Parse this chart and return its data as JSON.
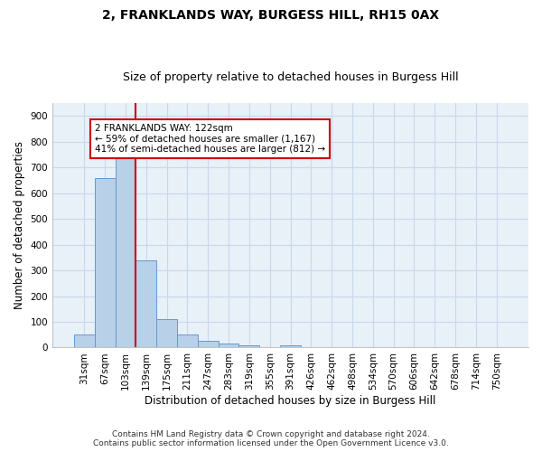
{
  "title": "2, FRANKLANDS WAY, BURGESS HILL, RH15 0AX",
  "subtitle": "Size of property relative to detached houses in Burgess Hill",
  "xlabel": "Distribution of detached houses by size in Burgess Hill",
  "ylabel": "Number of detached properties",
  "footer_line1": "Contains HM Land Registry data © Crown copyright and database right 2024.",
  "footer_line2": "Contains public sector information licensed under the Open Government Licence v3.0.",
  "bar_labels": [
    "31sqm",
    "67sqm",
    "103sqm",
    "139sqm",
    "175sqm",
    "211sqm",
    "247sqm",
    "283sqm",
    "319sqm",
    "355sqm",
    "391sqm",
    "426sqm",
    "462sqm",
    "498sqm",
    "534sqm",
    "570sqm",
    "606sqm",
    "642sqm",
    "678sqm",
    "714sqm",
    "750sqm"
  ],
  "bar_values": [
    50,
    660,
    750,
    340,
    110,
    50,
    25,
    15,
    10,
    0,
    10,
    0,
    0,
    0,
    0,
    0,
    0,
    0,
    0,
    0,
    0
  ],
  "bar_color": "#b8d0e8",
  "bar_edge_color": "#6699cc",
  "grid_color": "#c8d8ec",
  "background_color": "#e8f0f8",
  "vline_color": "#cc0000",
  "vline_pos": 2.5,
  "annotation_text_line1": "2 FRANKLANDS WAY: 122sqm",
  "annotation_text_line2": "← 59% of detached houses are smaller (1,167)",
  "annotation_text_line3": "41% of semi-detached houses are larger (812) →",
  "annotation_box_color": "#ffffff",
  "annotation_box_edge": "#cc0000",
  "ylim": [
    0,
    950
  ],
  "yticks": [
    0,
    100,
    200,
    300,
    400,
    500,
    600,
    700,
    800,
    900
  ],
  "title_fontsize": 10,
  "subtitle_fontsize": 9,
  "xlabel_fontsize": 8.5,
  "ylabel_fontsize": 8.5,
  "tick_fontsize": 7.5,
  "annotation_fontsize": 7.5,
  "footer_fontsize": 6.5
}
